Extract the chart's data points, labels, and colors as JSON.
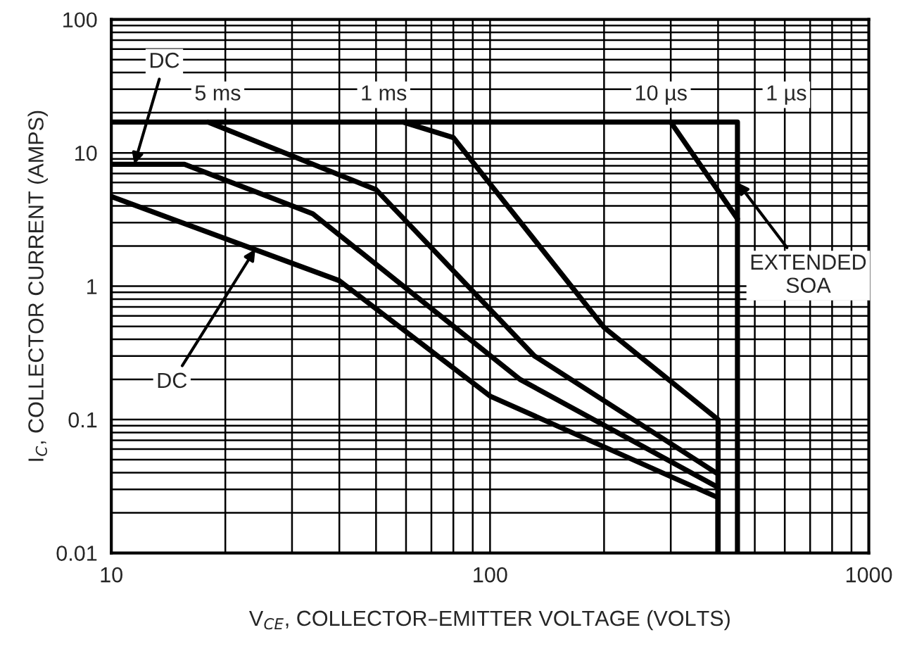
{
  "chart_data": {
    "type": "line",
    "xlabel": "V$_{CE}$, COLLECTOR–EMITTER VOLTAGE (VOLTS)",
    "ylabel": "I$_{C}$, COLLECTOR CURRENT (AMPS)",
    "log": "xy",
    "grid": true,
    "marker": "none",
    "line_style": "solid",
    "xlim": [
      10,
      1000
    ],
    "xticks": [
      10,
      100,
      1000
    ],
    "ylim": [
      0.01,
      100
    ],
    "yticks": [
      0.01,
      0.1,
      1,
      10,
      100
    ],
    "series": [
      {
        "color": "#000000",
        "x": [
          10,
          450,
          450
        ],
        "values": [
          17,
          17,
          0.01
        ]
      },
      {
        "color": "#000000",
        "x": [
          300,
          450
        ],
        "values": [
          17,
          3.2
        ]
      },
      {
        "color": "#000000",
        "x": [
          59,
          80,
          200,
          400,
          400
        ],
        "values": [
          17,
          13,
          0.49,
          0.1,
          0.01
        ]
      },
      {
        "color": "#000000",
        "x": [
          18,
          50,
          131,
          400,
          400
        ],
        "values": [
          17,
          5.3,
          0.3,
          0.039,
          0.01
        ]
      },
      {
        "color": "#000000",
        "x": [
          10,
          15.6,
          34,
          120,
          400,
          400
        ],
        "values": [
          8.2,
          8.2,
          3.5,
          0.2,
          0.031,
          0.01
        ]
      },
      {
        "color": "#000000",
        "x": [
          10,
          40,
          100,
          400,
          400
        ],
        "values": [
          4.7,
          1.1,
          0.15,
          0.026,
          0.01
        ]
      }
    ],
    "annotations": [
      {
        "text": "DC",
        "x": 11.5,
        "y": 8.2
      },
      {
        "text": "5 ms",
        "x": 18,
        "y": 17
      },
      {
        "text": "1 ms",
        "x": 59,
        "y": 17
      },
      {
        "text": "10 µs",
        "x": 300,
        "y": 17
      },
      {
        "text": "1 µs",
        "x": 450,
        "y": 17
      },
      {
        "text": "EXTENDED\nSOA",
        "x": 450,
        "y": 6
      },
      {
        "text": "DC",
        "x": 24,
        "y": 1.9
      }
    ]
  }
}
